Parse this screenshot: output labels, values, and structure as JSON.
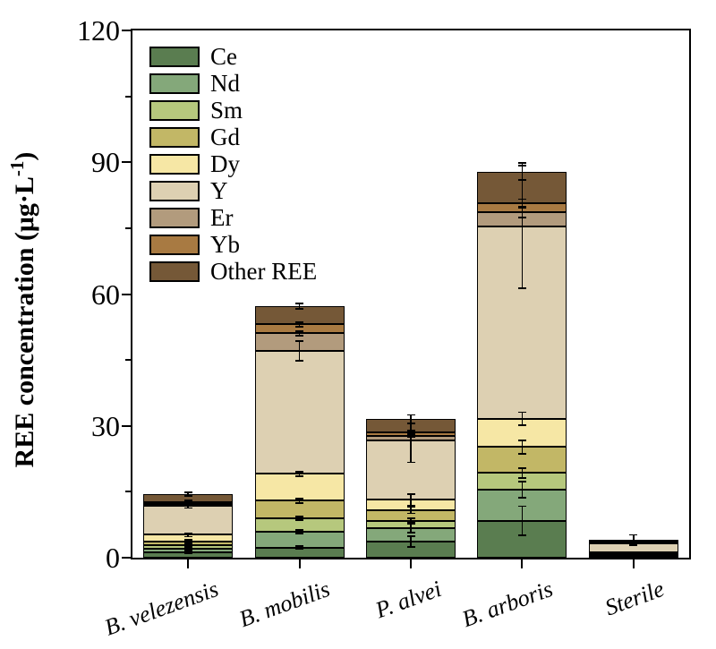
{
  "figure": {
    "y_axis_label": {
      "pre": "REE concentration (μg·L",
      "sup": "-1",
      "post": ")"
    }
  },
  "chart_data": {
    "type": "bar",
    "stacked": true,
    "title": "",
    "xlabel": "",
    "ylabel": "REE concentration (μg·L-1)",
    "ylim": [
      0,
      120
    ],
    "yticks": [
      0,
      30,
      60,
      90,
      120
    ],
    "yticklabels": [
      "0",
      "30",
      "60",
      "90",
      "120"
    ],
    "yticks_minor": [
      15,
      45,
      75,
      105
    ],
    "grid": false,
    "legend_position": "upper-left",
    "axis_color": "#000000",
    "categories": [
      "B. velezensis",
      "B. mobilis",
      "P. alvei",
      "B. arboris",
      "Sterile"
    ],
    "series": [
      {
        "name": "Ce",
        "color": "#5a7d50",
        "values": [
          1.3,
          2.3,
          3.7,
          8.4,
          0.3
        ]
      },
      {
        "name": "Nd",
        "color": "#84a87a",
        "values": [
          0.8,
          3.55,
          3.0,
          7.1,
          0.25
        ]
      },
      {
        "name": "Sm",
        "color": "#b6c87d",
        "values": [
          0.7,
          3.05,
          1.7,
          3.8,
          0.2
        ]
      },
      {
        "name": "Gd",
        "color": "#c2b766",
        "values": [
          0.9,
          4.1,
          2.4,
          5.9,
          0.25
        ]
      },
      {
        "name": "Dy",
        "color": "#f6e7a5",
        "values": [
          1.5,
          6.1,
          2.4,
          6.4,
          0.3
        ]
      },
      {
        "name": "Y",
        "color": "#ddd0b2",
        "values": [
          6.6,
          28.0,
          13.4,
          43.7,
          1.9
        ]
      },
      {
        "name": "Er",
        "color": "#b29b7d",
        "values": [
          0.5,
          4.0,
          1.2,
          3.3,
          0.3
        ]
      },
      {
        "name": "Yb",
        "color": "#a87a42",
        "values": [
          0.4,
          2.0,
          0.7,
          2.0,
          0.25
        ]
      },
      {
        "name": "Other REE",
        "color": "#755837",
        "values": [
          1.8,
          4.2,
          3.0,
          7.3,
          0.35
        ]
      }
    ],
    "bar_totals": [
      14.5,
      57.3,
      31.5,
      87.9,
      4.1
    ],
    "error_bar_half_widths": [
      [
        0.3,
        0.25,
        0.25,
        0.35,
        0.4,
        0.5,
        0.25,
        0.3,
        0.4
      ],
      [
        0.35,
        0.4,
        0.4,
        0.5,
        0.5,
        2.2,
        0.5,
        0.5,
        0.6
      ],
      [
        1.2,
        1.0,
        0.5,
        0.7,
        1.3,
        4.9,
        0.4,
        0.5,
        1.0
      ],
      [
        3.3,
        1.9,
        1.1,
        1.5,
        1.5,
        14.0,
        1.2,
        1.0,
        2.0
      ],
      [
        0,
        0,
        0,
        0,
        0,
        0.4,
        0,
        0,
        1.1
      ]
    ]
  }
}
